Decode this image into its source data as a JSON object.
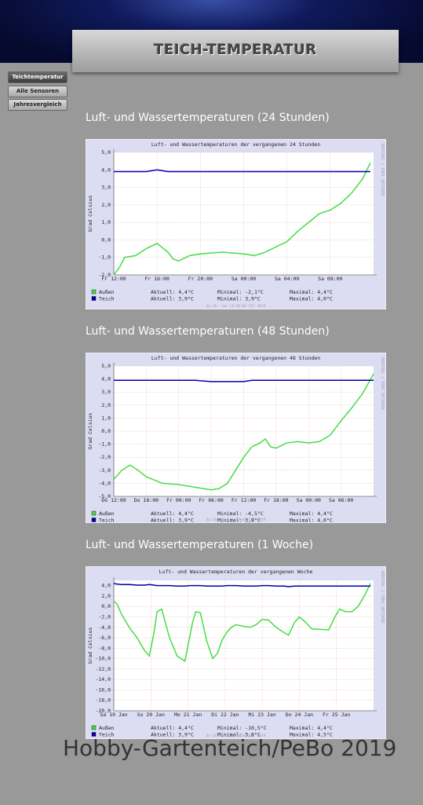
{
  "header": {
    "title": "TEICH-TEMPERATUR"
  },
  "nav": [
    "Teichtemperatur",
    "Alle Sensoren",
    "Jahresvergleich"
  ],
  "headings": [
    "Luft- und Wassertemperaturen (24 Stunden)",
    "Luft- und Wassertemperaturen (48 Stunden)",
    "Luft- und Wassertemperaturen (1 Woche)"
  ],
  "chart_data": [
    {
      "type": "line",
      "title": "Luft- und Wassertemperaturen der vergangenen 24 Stunden",
      "y_label": "Grad Celsius",
      "side_label": "RRDTOOL / TOBI OETIKER",
      "timestamp": "Sa 26. Jan 11:30:02 CET 2019",
      "grid": true,
      "xlim": [
        0,
        24
      ],
      "ylim": [
        -2,
        5
      ],
      "xticks": [
        {
          "value": 0,
          "label": "Fr 12:00"
        },
        {
          "value": 4,
          "label": "Fr 16:00"
        },
        {
          "value": 8,
          "label": "Fr 20:00"
        },
        {
          "value": 12,
          "label": "Sa 00:00"
        },
        {
          "value": 16,
          "label": "Sa 04:00"
        },
        {
          "value": 20,
          "label": "Sa 08:00"
        }
      ],
      "yticks": [
        {
          "value": 5,
          "label": "5,0"
        },
        {
          "value": 4,
          "label": "4,0"
        },
        {
          "value": 3,
          "label": "3,0"
        },
        {
          "value": 2,
          "label": "2,0"
        },
        {
          "value": 1,
          "label": "1,0"
        },
        {
          "value": 0,
          "label": "0,0"
        },
        {
          "value": -1,
          "label": "-1,0"
        },
        {
          "value": -2,
          "label": "-2,0"
        }
      ],
      "x": [
        0,
        0.5,
        1,
        2,
        3,
        4,
        5,
        5.5,
        6,
        7,
        8,
        10,
        12,
        13,
        14,
        15,
        16,
        17,
        18,
        19,
        20,
        21,
        22,
        23,
        23.7
      ],
      "series": [
        {
          "name": "Außen",
          "color": "#44dd44",
          "stats": [
            "Aktuell: 4,4°C",
            "Minimal: -2,1°C",
            "Maximal: 4,4°C"
          ],
          "values": [
            -2.0,
            -1.6,
            -1.0,
            -0.9,
            -0.5,
            -0.2,
            -0.7,
            -1.1,
            -1.2,
            -0.9,
            -0.8,
            -0.7,
            -0.8,
            -0.9,
            -0.7,
            -0.4,
            -0.1,
            0.5,
            1.0,
            1.5,
            1.7,
            2.1,
            2.7,
            3.5,
            4.4
          ]
        },
        {
          "name": "Teich",
          "color": "#0000aa",
          "stats": [
            "Aktuell: 3,9°C",
            "Minimal: 3,9°C",
            "Maximal: 4,0°C"
          ],
          "values": [
            3.9,
            3.9,
            3.9,
            3.9,
            3.9,
            4.0,
            3.9,
            3.9,
            3.9,
            3.9,
            3.9,
            3.9,
            3.9,
            3.9,
            3.9,
            3.9,
            3.9,
            3.9,
            3.9,
            3.9,
            3.9,
            3.9,
            3.9,
            3.9,
            3.9
          ]
        }
      ]
    },
    {
      "type": "line",
      "title": "Luft- und Wassertemperaturen der vergangenen 48 Stunden",
      "y_label": "Grad Celsius",
      "side_label": "RRDTOOL / TOBI OETIKER",
      "timestamp": "Sa 26. Jan 11:30:02 CET 2019",
      "grid": true,
      "xlim": [
        0,
        48
      ],
      "ylim": [
        -5,
        5
      ],
      "xticks": [
        {
          "value": 0,
          "label": "Do 12:00"
        },
        {
          "value": 6,
          "label": "Do 18:00"
        },
        {
          "value": 12,
          "label": "Fr 00:00"
        },
        {
          "value": 18,
          "label": "Fr 06:00"
        },
        {
          "value": 24,
          "label": "Fr 12:00"
        },
        {
          "value": 30,
          "label": "Fr 18:00"
        },
        {
          "value": 36,
          "label": "Sa 00:00"
        },
        {
          "value": 42,
          "label": "Sa 06:00"
        }
      ],
      "yticks": [
        {
          "value": 5,
          "label": "5,0"
        },
        {
          "value": 4,
          "label": "4,0"
        },
        {
          "value": 3,
          "label": "3,0"
        },
        {
          "value": 2,
          "label": "2,0"
        },
        {
          "value": 1,
          "label": "1,0"
        },
        {
          "value": 0,
          "label": "0,0"
        },
        {
          "value": -1,
          "label": "-1,0"
        },
        {
          "value": -2,
          "label": "-2,0"
        },
        {
          "value": -3,
          "label": "-3,0"
        },
        {
          "value": -4,
          "label": "-4,0"
        },
        {
          "value": -5,
          "label": "-5,0"
        }
      ],
      "x": [
        0,
        1.5,
        3,
        4.5,
        6,
        9,
        12,
        15,
        18,
        19.5,
        21,
        22.5,
        24,
        25.5,
        27,
        28,
        29,
        30,
        32,
        34,
        36,
        38,
        40,
        42,
        44,
        46,
        48
      ],
      "series": [
        {
          "name": "Außen",
          "color": "#44dd44",
          "stats": [
            "Aktuell: 4,4°C",
            "Minimal: -4,5°C",
            "Maximal: 4,4°C"
          ],
          "values": [
            -3.7,
            -3.0,
            -2.6,
            -3.0,
            -3.5,
            -4.0,
            -4.1,
            -4.3,
            -4.5,
            -4.4,
            -4.0,
            -3.0,
            -2.0,
            -1.2,
            -0.9,
            -0.6,
            -1.2,
            -1.3,
            -0.9,
            -0.8,
            -0.9,
            -0.8,
            -0.3,
            0.8,
            1.8,
            2.9,
            4.4
          ]
        },
        {
          "name": "Teich",
          "color": "#0000aa",
          "stats": [
            "Aktuell: 3,9°C",
            "Minimal: 3,8°C",
            "Maximal: 4,0°C"
          ],
          "values": [
            3.9,
            3.9,
            3.9,
            3.9,
            3.9,
            3.9,
            3.9,
            3.9,
            3.8,
            3.8,
            3.8,
            3.8,
            3.8,
            3.9,
            3.9,
            3.9,
            3.9,
            3.9,
            3.9,
            3.9,
            3.9,
            3.9,
            3.9,
            3.9,
            3.9,
            3.9,
            3.9
          ]
        }
      ]
    },
    {
      "type": "line",
      "title": "Luft- und Wassertemperaturen der vergangenen Woche",
      "y_label": "Grad Celsius",
      "side_label": "RRDTOOL / TOBI OETIKER",
      "timestamp": "Sa 26. Jan 11:30:03 CET 2019",
      "grid": true,
      "xlim": [
        0,
        168
      ],
      "ylim": [
        -20,
        5
      ],
      "xticks": [
        {
          "value": 0,
          "label": "Sa 19 Jan"
        },
        {
          "value": 24,
          "label": "So 20 Jan"
        },
        {
          "value": 48,
          "label": "Mo 21 Jan"
        },
        {
          "value": 72,
          "label": "Di 22 Jan"
        },
        {
          "value": 96,
          "label": "Mi 23 Jan"
        },
        {
          "value": 120,
          "label": "Do 24 Jan"
        },
        {
          "value": 144,
          "label": "Fr 25 Jan"
        }
      ],
      "yticks": [
        {
          "value": 4,
          "label": "4,0"
        },
        {
          "value": 2,
          "label": "2,0"
        },
        {
          "value": 0,
          "label": "0,0"
        },
        {
          "value": -2,
          "label": "-2,0"
        },
        {
          "value": -4,
          "label": "-4,0"
        },
        {
          "value": -6,
          "label": "-6,0"
        },
        {
          "value": -8,
          "label": "-8,0"
        },
        {
          "value": -10,
          "label": "-10,0"
        },
        {
          "value": -12,
          "label": "-12,0"
        },
        {
          "value": -14,
          "label": "-14,0"
        },
        {
          "value": -16,
          "label": "-16,0"
        },
        {
          "value": -18,
          "label": "-18,0"
        },
        {
          "value": -20,
          "label": "-20,0"
        }
      ],
      "x": [
        0,
        2,
        5,
        10,
        15,
        20,
        23,
        26,
        28,
        31,
        36,
        41,
        46,
        49,
        51,
        53,
        56,
        60,
        64,
        67,
        70,
        73,
        76,
        79,
        84,
        88,
        92,
        96,
        100,
        105,
        110,
        113,
        117,
        120,
        124,
        128,
        134,
        139,
        143,
        146,
        150,
        154,
        158,
        162,
        166
      ],
      "series": [
        {
          "name": "Außen",
          "color": "#44dd44",
          "stats": [
            "Aktuell: 4,4°C",
            "Minimal: -10,5°C",
            "Maximal: 4,4°C"
          ],
          "values": [
            1.0,
            0.5,
            -1.5,
            -4.0,
            -6.0,
            -8.5,
            -9.5,
            -5.0,
            -1.0,
            -0.5,
            -6.0,
            -9.5,
            -10.5,
            -6.0,
            -3.0,
            -1.0,
            -1.2,
            -6.5,
            -10.0,
            -9.0,
            -6.5,
            -5.0,
            -4.0,
            -3.5,
            -3.8,
            -4.0,
            -3.5,
            -2.5,
            -2.6,
            -4.0,
            -5.0,
            -5.5,
            -3.0,
            -2.0,
            -3.0,
            -4.3,
            -4.4,
            -4.5,
            -2.0,
            -0.5,
            -1.0,
            -1.0,
            0.0,
            2.0,
            4.4
          ]
        },
        {
          "name": "Teich",
          "color": "#0000aa",
          "stats": [
            "Aktuell: 3,9°C",
            "Minimal: 3,8°C",
            "Maximal: 4,5°C"
          ],
          "values": [
            4.4,
            4.3,
            4.2,
            4.2,
            4.1,
            4.1,
            4.2,
            4.1,
            4.0,
            4.0,
            4.0,
            3.9,
            3.9,
            4.0,
            4.0,
            4.0,
            4.0,
            3.9,
            3.9,
            3.9,
            3.9,
            4.0,
            4.0,
            4.0,
            3.9,
            3.9,
            3.9,
            4.0,
            4.0,
            3.9,
            3.9,
            3.8,
            3.9,
            3.9,
            3.9,
            3.9,
            3.9,
            3.9,
            3.9,
            3.9,
            3.9,
            3.9,
            3.9,
            3.9,
            3.9
          ]
        }
      ]
    }
  ],
  "footer": "Hobby-Gartenteich/PeBo 2019"
}
